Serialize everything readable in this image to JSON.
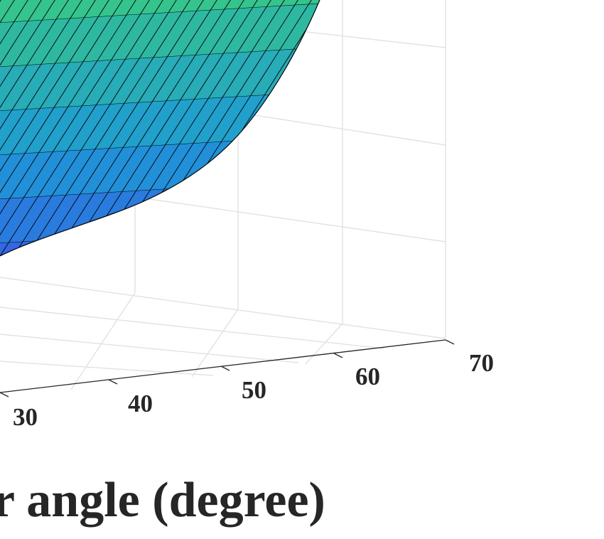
{
  "chart_data": {
    "type": "surface",
    "xlabel": "r angle (degree)",
    "x_ticks": [
      "30",
      "40",
      "50",
      "60",
      "70"
    ],
    "xlim": [
      30,
      70
    ],
    "colormap": "parula",
    "grid": true,
    "edge_color": "#000000",
    "colors": {
      "low": "#3b52e8",
      "mid": "#1e9ad6",
      "high": "#35c48d",
      "grid": "#e2e2e2",
      "axis": "#262626"
    }
  }
}
